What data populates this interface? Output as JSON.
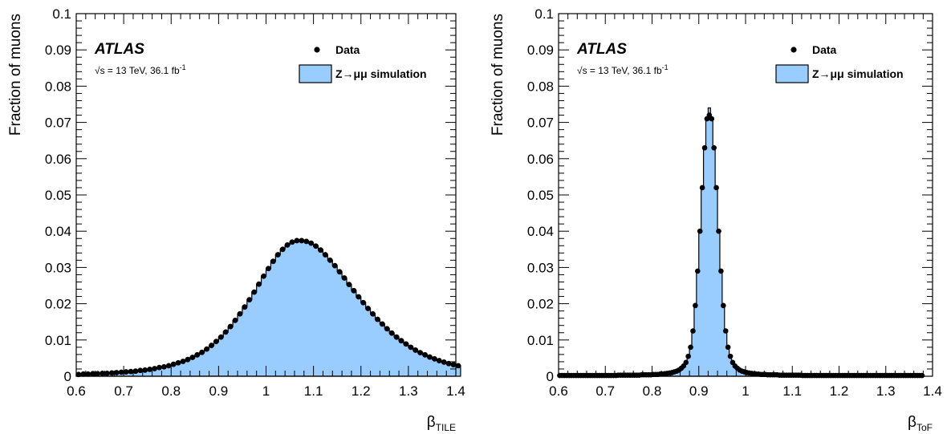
{
  "colors": {
    "fill": "#99ccff",
    "line": "#000000",
    "marker": "#000000"
  },
  "chart_data": [
    {
      "type": "line",
      "panel": "left",
      "experiment_label": "ATLAS",
      "info_prefix": "√s = 13 TeV, 36.1 fb",
      "info_sup": "-1",
      "ylabel": "Fraction of muons",
      "xlabel_main": "β",
      "xlabel_sub": "TILE",
      "xlim": [
        0.6,
        1.4
      ],
      "ylim": [
        0,
        0.1
      ],
      "xticks": [
        "0.6",
        "0.7",
        "0.8",
        "0.9",
        "1",
        "1.1",
        "1.2",
        "1.3",
        "1.4"
      ],
      "yticks": [
        "0",
        "0.01",
        "0.02",
        "0.03",
        "0.04",
        "0.05",
        "0.06",
        "0.07",
        "0.08",
        "0.09",
        "0.1"
      ],
      "legend": {
        "data_label": "Data",
        "sim_label": "Z→μμ simulation",
        "placement": "top-right"
      },
      "bin_width": 0.01,
      "simulation_values": [
        0.0005,
        0.0006,
        0.0006,
        0.0007,
        0.0007,
        0.0008,
        0.0008,
        0.0009,
        0.001,
        0.0011,
        0.0012,
        0.0013,
        0.0014,
        0.0016,
        0.0017,
        0.0019,
        0.0021,
        0.0024,
        0.0026,
        0.0029,
        0.0033,
        0.0037,
        0.0041,
        0.0046,
        0.0052,
        0.0059,
        0.0066,
        0.0075,
        0.0085,
        0.0096,
        0.0108,
        0.0122,
        0.0137,
        0.0154,
        0.0172,
        0.0191,
        0.0211,
        0.0232,
        0.0254,
        0.0276,
        0.0297,
        0.0317,
        0.0335,
        0.035,
        0.0362,
        0.037,
        0.0374,
        0.0374,
        0.0372,
        0.0367,
        0.0359,
        0.0348,
        0.0335,
        0.032,
        0.0305,
        0.0288,
        0.0271,
        0.0253,
        0.0236,
        0.0219,
        0.0203,
        0.0187,
        0.0172,
        0.0157,
        0.0144,
        0.0131,
        0.0119,
        0.0108,
        0.0098,
        0.0089,
        0.008,
        0.0072,
        0.0065,
        0.0059,
        0.0053,
        0.0048,
        0.0043,
        0.0039,
        0.0035,
        0.0032,
        0.0029
      ],
      "data_values": [
        0.0005,
        0.0006,
        0.0006,
        0.0007,
        0.0007,
        0.0008,
        0.0008,
        0.0009,
        0.001,
        0.0011,
        0.0012,
        0.0013,
        0.0014,
        0.0016,
        0.0017,
        0.0019,
        0.0021,
        0.0024,
        0.0026,
        0.0029,
        0.0033,
        0.0037,
        0.0041,
        0.0046,
        0.0052,
        0.0059,
        0.0066,
        0.0075,
        0.0085,
        0.0096,
        0.0108,
        0.0122,
        0.0137,
        0.0154,
        0.0172,
        0.0191,
        0.0211,
        0.0232,
        0.0254,
        0.0276,
        0.0297,
        0.0317,
        0.0335,
        0.035,
        0.0362,
        0.037,
        0.0374,
        0.0374,
        0.0372,
        0.0367,
        0.0359,
        0.0348,
        0.0335,
        0.032,
        0.0305,
        0.0288,
        0.0271,
        0.0253,
        0.0236,
        0.0219,
        0.0203,
        0.0187,
        0.0172,
        0.0157,
        0.0144,
        0.0131,
        0.0119,
        0.0108,
        0.0098,
        0.0089,
        0.008,
        0.0072,
        0.0065,
        0.0059,
        0.0053,
        0.0048,
        0.0043,
        0.0039,
        0.0035,
        0.0032,
        0.0029
      ]
    },
    {
      "type": "line",
      "panel": "right",
      "experiment_label": "ATLAS",
      "info_prefix": "√s = 13 TeV, 36.1 fb",
      "info_sup": "-1",
      "ylabel": "Fraction of muons",
      "xlabel_main": "β",
      "xlabel_sub": "ToF",
      "xlim": [
        0.6,
        1.4
      ],
      "ylim": [
        0,
        0.1
      ],
      "xticks": [
        "0.6",
        "0.7",
        "0.8",
        "0.9",
        "1",
        "1.1",
        "1.2",
        "1.3",
        "1.4"
      ],
      "yticks": [
        "0",
        "0.01",
        "0.02",
        "0.03",
        "0.04",
        "0.05",
        "0.06",
        "0.07",
        "0.08",
        "0.09",
        "0.1"
      ],
      "legend": {
        "data_label": "Data",
        "sim_label": "Z→μμ simulation",
        "placement": "top-right"
      },
      "bin_width": 0.005,
      "simulation_values": [
        0.0002,
        0.0002,
        0.0002,
        0.0002,
        0.0002,
        0.0002,
        0.0002,
        0.0002,
        0.0002,
        0.0002,
        0.0002,
        0.0002,
        0.0002,
        0.0002,
        0.0002,
        0.0002,
        0.0002,
        0.0002,
        0.0002,
        0.0002,
        0.0002,
        0.0002,
        0.0002,
        0.0002,
        0.0002,
        0.0003,
        0.0003,
        0.0003,
        0.0003,
        0.0003,
        0.0003,
        0.0003,
        0.0003,
        0.0003,
        0.0003,
        0.0004,
        0.0004,
        0.0004,
        0.0004,
        0.0004,
        0.0005,
        0.0005,
        0.0005,
        0.0006,
        0.0006,
        0.0007,
        0.0008,
        0.0009,
        0.001,
        0.0012,
        0.0014,
        0.0017,
        0.0022,
        0.0028,
        0.0038,
        0.0055,
        0.008,
        0.0125,
        0.0195,
        0.029,
        0.04,
        0.052,
        0.063,
        0.071,
        0.074,
        0.071,
        0.063,
        0.052,
        0.04,
        0.029,
        0.0195,
        0.0125,
        0.008,
        0.0055,
        0.0038,
        0.0028,
        0.0022,
        0.0017,
        0.0014,
        0.0012,
        0.001,
        0.0009,
        0.0008,
        0.0007,
        0.0006,
        0.0006,
        0.0005,
        0.0005,
        0.0005,
        0.0004,
        0.0004,
        0.0004,
        0.0004,
        0.0004,
        0.0003,
        0.0003,
        0.0003,
        0.0003,
        0.0003,
        0.0003,
        0.0003,
        0.0003,
        0.0003,
        0.0003,
        0.0002,
        0.0002,
        0.0002,
        0.0002,
        0.0002,
        0.0002,
        0.0002,
        0.0002,
        0.0002,
        0.0002,
        0.0002,
        0.0002,
        0.0002,
        0.0002,
        0.0002,
        0.0002,
        0.0002,
        0.0002,
        0.0002,
        0.0002,
        0.0002,
        0.0002,
        0.0002,
        0.0002,
        0.0002,
        0.0002,
        0.0002,
        0.0002,
        0.0002,
        0.0002,
        0.0002,
        0.0002,
        0.0002,
        0.0002,
        0.0002,
        0.0002,
        0.0002,
        0.0002,
        0.0002,
        0.0002,
        0.0002,
        0.0002,
        0.0002,
        0.0002,
        0.0002,
        0.0002,
        0.0002,
        0.0002,
        0.0002,
        0.0002,
        0.0002,
        0.0002
      ],
      "data_values": [
        0.0002,
        0.0002,
        0.0002,
        0.0002,
        0.0002,
        0.0002,
        0.0002,
        0.0002,
        0.0002,
        0.0002,
        0.0002,
        0.0002,
        0.0002,
        0.0002,
        0.0002,
        0.0002,
        0.0002,
        0.0002,
        0.0002,
        0.0002,
        0.0002,
        0.0002,
        0.0002,
        0.0002,
        0.0002,
        0.0003,
        0.0003,
        0.0003,
        0.0003,
        0.0003,
        0.0003,
        0.0003,
        0.0003,
        0.0003,
        0.0003,
        0.0004,
        0.0004,
        0.0004,
        0.0004,
        0.0004,
        0.0005,
        0.0005,
        0.0005,
        0.0006,
        0.0006,
        0.0007,
        0.0008,
        0.0009,
        0.001,
        0.0012,
        0.0014,
        0.0017,
        0.0022,
        0.0028,
        0.0038,
        0.0055,
        0.008,
        0.0125,
        0.0195,
        0.029,
        0.04,
        0.052,
        0.063,
        0.071,
        0.072,
        0.071,
        0.063,
        0.052,
        0.04,
        0.029,
        0.0195,
        0.0125,
        0.008,
        0.0055,
        0.0038,
        0.0028,
        0.0022,
        0.0017,
        0.0014,
        0.0012,
        0.001,
        0.0009,
        0.0008,
        0.0007,
        0.0006,
        0.0006,
        0.0005,
        0.0005,
        0.0005,
        0.0004,
        0.0004,
        0.0004,
        0.0004,
        0.0004,
        0.0003,
        0.0003,
        0.0003,
        0.0003,
        0.0003,
        0.0003,
        0.0003,
        0.0003,
        0.0003,
        0.0003,
        0.0002,
        0.0002,
        0.0002,
        0.0002,
        0.0002,
        0.0002,
        0.0002,
        0.0002,
        0.0002,
        0.0002,
        0.0002,
        0.0002,
        0.0002,
        0.0002,
        0.0002,
        0.0002,
        0.0002,
        0.0002,
        0.0002,
        0.0002,
        0.0002,
        0.0002,
        0.0002,
        0.0002,
        0.0002,
        0.0002,
        0.0002,
        0.0002,
        0.0002,
        0.0002,
        0.0002,
        0.0002,
        0.0002,
        0.0002,
        0.0002,
        0.0002,
        0.0002,
        0.0002,
        0.0002,
        0.0002,
        0.0002,
        0.0002,
        0.0002,
        0.0002,
        0.0002,
        0.0002,
        0.0002,
        0.0002,
        0.0002,
        0.0002,
        0.0002,
        0.0002
      ]
    }
  ]
}
